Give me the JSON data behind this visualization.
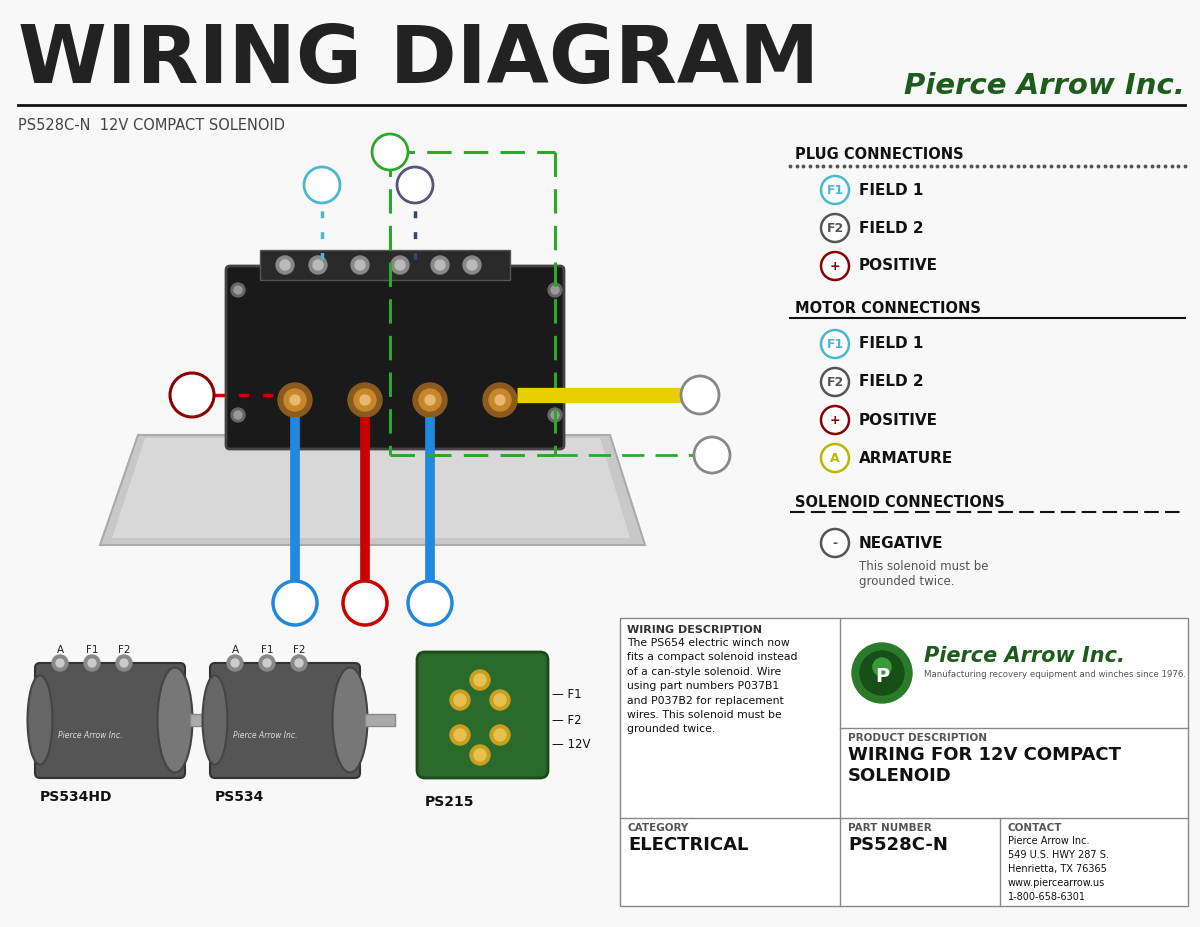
{
  "bg_color": "#f8f8f8",
  "title": "WIRING DIAGRAM",
  "subtitle": "PS528C-N  12V COMPACT SOLENOID",
  "company": "Pierce Arrow Inc.",
  "title_color": "#222222",
  "company_color": "#1e5c1e",
  "plug_header": "PLUG CONNECTIONS",
  "plug_items": [
    {
      "symbol": "F1",
      "label": "FIELD 1",
      "ec": "#4ab8d0"
    },
    {
      "symbol": "F2",
      "label": "FIELD 2",
      "ec": "#555555"
    },
    {
      "symbol": "+",
      "label": "POSITIVE",
      "ec": "#8b0000"
    }
  ],
  "motor_header": "MOTOR CONNECTIONS",
  "motor_items": [
    {
      "symbol": "F1",
      "label": "FIELD 1",
      "ec": "#4ab8d0"
    },
    {
      "symbol": "F2",
      "label": "FIELD 2",
      "ec": "#555555"
    },
    {
      "symbol": "+",
      "label": "POSITIVE",
      "ec": "#8b0000"
    },
    {
      "symbol": "A",
      "label": "ARMATURE",
      "ec": "#b8b800"
    }
  ],
  "sol_header": "SOLENOID CONNECTIONS",
  "sol_item": {
    "symbol": "-",
    "label": "NEGATIVE",
    "sublabel": "This solenoid must be\ngrounded twice.",
    "ec": "#555555"
  },
  "wd_header": "WIRING DESCRIPTION",
  "wd_text": "The PS654 electric winch now\nfits a compact solenoid instead\nof a can-style solenoid. Wire\nusing part numbers P037B1\nand P037B2 for replacement\nwires. This solenoid must be\ngrounded twice.",
  "pd_header": "PRODUCT DESCRIPTION",
  "pd_text": "WIRING FOR 12V COMPACT\nSOLENOID",
  "cat_header": "CATEGORY",
  "cat_text": "ELECTRICAL",
  "pn_header": "PART NUMBER",
  "pn_text": "PS528C-N",
  "ct_header": "CONTACT",
  "ct_text": "Pierce Arrow Inc.\n549 U.S. HWY 287 S.\nHenrietta, TX 76365\nwww.piercearrow.us\n1-800-658-6301",
  "pa_tagline": "Manufacturing recovery equipment and winches since 1976.",
  "bottom_labels": [
    "PS534HD",
    "PS534",
    "PS215"
  ],
  "green": "#2da82d",
  "blue_wire": "#2288dd",
  "red_wire": "#cc0000",
  "yellow_wire": "#e8d000",
  "cyan_ec": "#4ab8d0",
  "dark_ec": "#555555",
  "red_ec": "#8b0000",
  "yellow_ec": "#b8b800"
}
